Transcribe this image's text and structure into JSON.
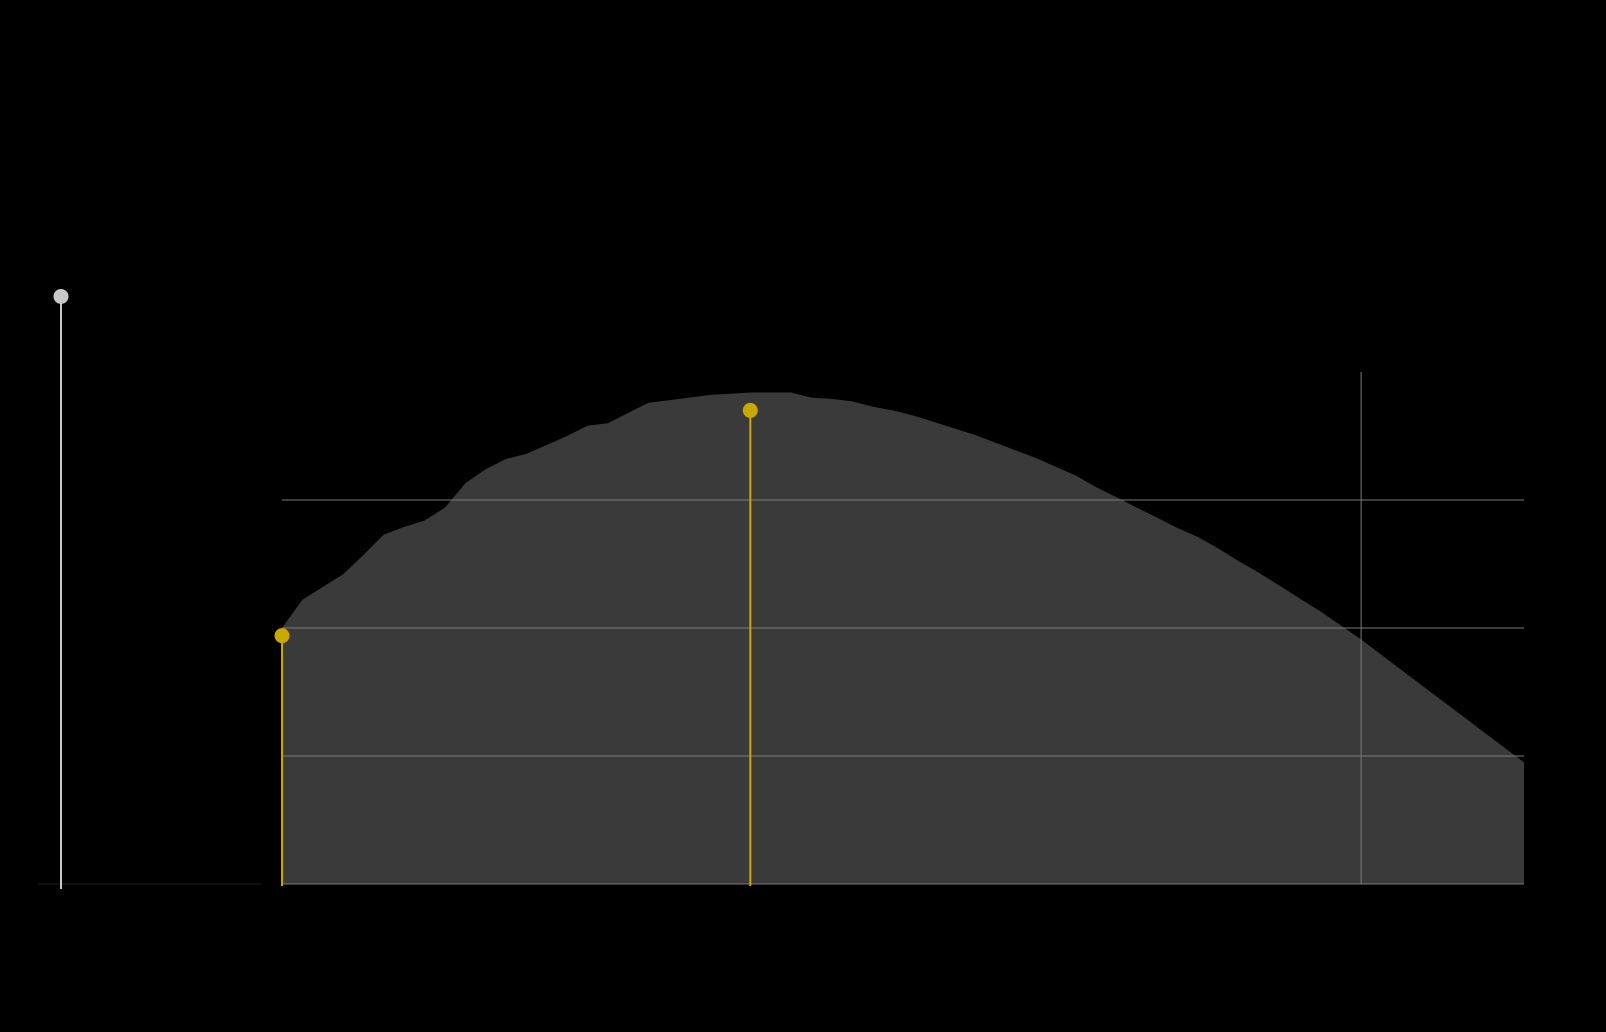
{
  "colors": {
    "background": "#000000",
    "area_fill": "#3a3a3a",
    "gridline": "#7a7a7a",
    "marker_highlight": "#c9a800",
    "marker_reference": "#c8c8c8",
    "baseline": "#1e1e1e"
  },
  "chart_data": {
    "type": "area",
    "grid": true,
    "legend": "none",
    "xlim": [
      0,
      61
    ],
    "ylim": [
      0,
      4
    ],
    "yticks": [
      1,
      2,
      3
    ],
    "x_reference_line": 53,
    "x": [
      0,
      1,
      2,
      3,
      4,
      5,
      6,
      7,
      8,
      9,
      10,
      11,
      12,
      13,
      14,
      15,
      16,
      17,
      18,
      19,
      20,
      21,
      22,
      23,
      24,
      25,
      26,
      27,
      28,
      29,
      30,
      31,
      32,
      33,
      34,
      35,
      36,
      37,
      38,
      39,
      40,
      41,
      42,
      43,
      44,
      45,
      46,
      47,
      48,
      49,
      50,
      51,
      52,
      53,
      54,
      55,
      56,
      57,
      58,
      59,
      60,
      61
    ],
    "series": [
      {
        "values": [
          2.0,
          2.22,
          2.32,
          2.42,
          2.57,
          2.73,
          2.79,
          2.84,
          2.94,
          3.13,
          3.24,
          3.32,
          3.36,
          3.43,
          3.5,
          3.58,
          3.6,
          3.68,
          3.76,
          3.78,
          3.8,
          3.82,
          3.83,
          3.84,
          3.84,
          3.84,
          3.8,
          3.79,
          3.77,
          3.73,
          3.7,
          3.66,
          3.61,
          3.56,
          3.51,
          3.45,
          3.39,
          3.33,
          3.26,
          3.19,
          3.1,
          3.02,
          2.94,
          2.86,
          2.78,
          2.71,
          2.62,
          2.52,
          2.43,
          2.33,
          2.23,
          2.13,
          2.02,
          1.91,
          1.79,
          1.67,
          1.55,
          1.43,
          1.31,
          1.19,
          1.07,
          0.95
        ]
      }
    ],
    "highlight_markers": [
      {
        "x": 0,
        "y": 1.94
      },
      {
        "x": 23,
        "y": 3.7
      }
    ],
    "reference_marker": {
      "y": 4.59
    }
  }
}
